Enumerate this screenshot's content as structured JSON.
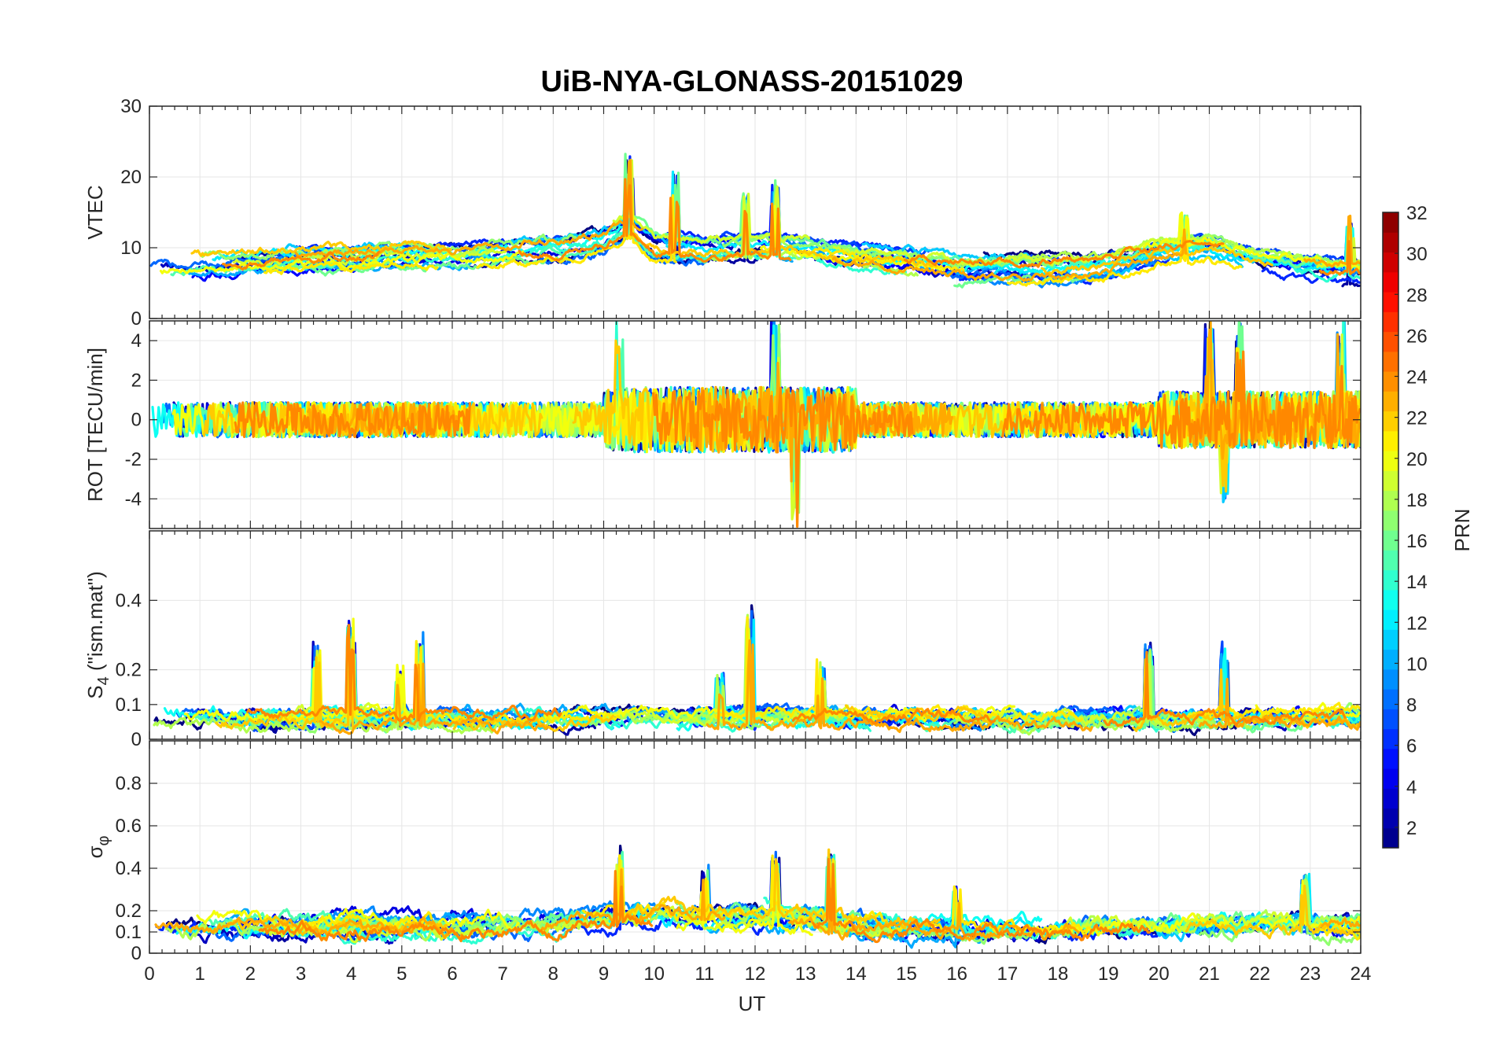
{
  "chart_data": {
    "type": "line",
    "title": "UiB-NYA-GLONASS-20151029",
    "xlabel": "UT",
    "xlim": [
      0,
      24
    ],
    "xticks": [
      0,
      1,
      2,
      3,
      4,
      5,
      6,
      7,
      8,
      9,
      10,
      11,
      12,
      13,
      14,
      15,
      16,
      17,
      18,
      19,
      20,
      21,
      22,
      23,
      24
    ],
    "grid": true,
    "panels": [
      {
        "id": "vtec",
        "ylabel": "VTEC",
        "ylim": [
          0,
          30
        ],
        "yticks": [
          0,
          10,
          20,
          30
        ],
        "baseline": [
          [
            0,
            7.5
          ],
          [
            1,
            7.5
          ],
          [
            2,
            8
          ],
          [
            3,
            8.5
          ],
          [
            4,
            8.5
          ],
          [
            5,
            9
          ],
          [
            6,
            9
          ],
          [
            7,
            9.5
          ],
          [
            8,
            10
          ],
          [
            9,
            11
          ],
          [
            9.5,
            13
          ],
          [
            10,
            10
          ],
          [
            11,
            9.5
          ],
          [
            12,
            10
          ],
          [
            13,
            9.5
          ],
          [
            14,
            8.5
          ],
          [
            15,
            8
          ],
          [
            16,
            7
          ],
          [
            17,
            7
          ],
          [
            18,
            7
          ],
          [
            19,
            7.5
          ],
          [
            20,
            9.5
          ],
          [
            21,
            10
          ],
          [
            22,
            8
          ],
          [
            23,
            7
          ],
          [
            24,
            6.5
          ]
        ],
        "spread": 1.8,
        "events": [
          {
            "t": 9.5,
            "amp": 8
          },
          {
            "t": 10.4,
            "amp": 10
          },
          {
            "t": 11.8,
            "amp": 6
          },
          {
            "t": 12.4,
            "amp": 7
          },
          {
            "t": 20.5,
            "amp": 4
          },
          {
            "t": 23.8,
            "amp": 6
          }
        ]
      },
      {
        "id": "rot",
        "ylabel": "ROT [TECU/min]",
        "ylim": [
          -5.5,
          5
        ],
        "yticks": [
          -4,
          -2,
          0,
          2,
          4
        ],
        "baseline": [
          [
            0,
            0
          ],
          [
            24,
            0
          ]
        ],
        "spread": 1.1,
        "events": [
          {
            "t": 9.3,
            "amp": 3.5
          },
          {
            "t": 12.4,
            "amp": 4.5
          },
          {
            "t": 12.8,
            "amp": -4.5
          },
          {
            "t": 21.0,
            "amp": 4
          },
          {
            "t": 21.6,
            "amp": 4
          },
          {
            "t": 23.6,
            "amp": 4
          },
          {
            "t": 21.3,
            "amp": -3
          }
        ]
      },
      {
        "id": "s4",
        "ylabel": "S4 (\"ism.mat\")",
        "ylabel_main": "S",
        "ylabel_sub": "4",
        "ylabel_rest": " (\"ism.mat\")",
        "ylim": [
          0,
          0.6
        ],
        "yticks": [
          0,
          0.1,
          0.2,
          0.4
        ],
        "baseline": [
          [
            0,
            0.06
          ],
          [
            24,
            0.06
          ]
        ],
        "spread": 0.02,
        "events": [
          {
            "t": 3.3,
            "amp": 0.18
          },
          {
            "t": 4.0,
            "amp": 0.25
          },
          {
            "t": 4.95,
            "amp": 0.12
          },
          {
            "t": 5.35,
            "amp": 0.2
          },
          {
            "t": 11.3,
            "amp": 0.1
          },
          {
            "t": 11.9,
            "amp": 0.27
          },
          {
            "t": 13.3,
            "amp": 0.13
          },
          {
            "t": 19.8,
            "amp": 0.2
          },
          {
            "t": 21.3,
            "amp": 0.19
          }
        ]
      },
      {
        "id": "sigma_phi",
        "ylabel": "σφ",
        "ylabel_main": "σ",
        "ylabel_sub": "φ",
        "ylim": [
          0,
          1
        ],
        "yticks": [
          0,
          0.1,
          0.2,
          0.4,
          0.6,
          0.8
        ],
        "baseline": [
          [
            0,
            0.13
          ],
          [
            8,
            0.13
          ],
          [
            9,
            0.17
          ],
          [
            10,
            0.18
          ],
          [
            12,
            0.17
          ],
          [
            13,
            0.16
          ],
          [
            14,
            0.12
          ],
          [
            16,
            0.11
          ],
          [
            19,
            0.12
          ],
          [
            20,
            0.12
          ],
          [
            22,
            0.15
          ],
          [
            24,
            0.13
          ]
        ],
        "spread": 0.04,
        "events": [
          {
            "t": 9.3,
            "amp": 0.28
          },
          {
            "t": 11.0,
            "amp": 0.22
          },
          {
            "t": 12.4,
            "amp": 0.28
          },
          {
            "t": 13.5,
            "amp": 0.28
          },
          {
            "t": 16.0,
            "amp": 0.17
          },
          {
            "t": 22.9,
            "amp": 0.2
          }
        ]
      }
    ],
    "series": [
      {
        "name": "PRN 1",
        "prn": 1
      },
      {
        "name": "PRN 2",
        "prn": 2
      },
      {
        "name": "PRN 3",
        "prn": 3
      },
      {
        "name": "PRN 4",
        "prn": 4
      },
      {
        "name": "PRN 5",
        "prn": 5
      },
      {
        "name": "PRN 6",
        "prn": 6
      },
      {
        "name": "PRN 7",
        "prn": 7
      },
      {
        "name": "PRN 8",
        "prn": 8
      },
      {
        "name": "PRN 9",
        "prn": 9
      },
      {
        "name": "PRN 10",
        "prn": 10
      },
      {
        "name": "PRN 11",
        "prn": 11
      },
      {
        "name": "PRN 12",
        "prn": 12
      },
      {
        "name": "PRN 13",
        "prn": 13
      },
      {
        "name": "PRN 14",
        "prn": 14
      },
      {
        "name": "PRN 15",
        "prn": 15
      },
      {
        "name": "PRN 16",
        "prn": 16
      },
      {
        "name": "PRN 17",
        "prn": 17
      },
      {
        "name": "PRN 18",
        "prn": 18
      },
      {
        "name": "PRN 19",
        "prn": 19
      },
      {
        "name": "PRN 20",
        "prn": 20
      },
      {
        "name": "PRN 21",
        "prn": 21
      },
      {
        "name": "PRN 22",
        "prn": 22
      },
      {
        "name": "PRN 23",
        "prn": 23
      },
      {
        "name": "PRN 24",
        "prn": 24
      }
    ],
    "colorbar": {
      "label": "PRN",
      "range": [
        1,
        32
      ],
      "ticks": [
        2,
        4,
        6,
        8,
        10,
        12,
        14,
        16,
        18,
        20,
        22,
        24,
        26,
        28,
        30,
        32
      ],
      "colormap": "jet",
      "segments": 32
    }
  }
}
